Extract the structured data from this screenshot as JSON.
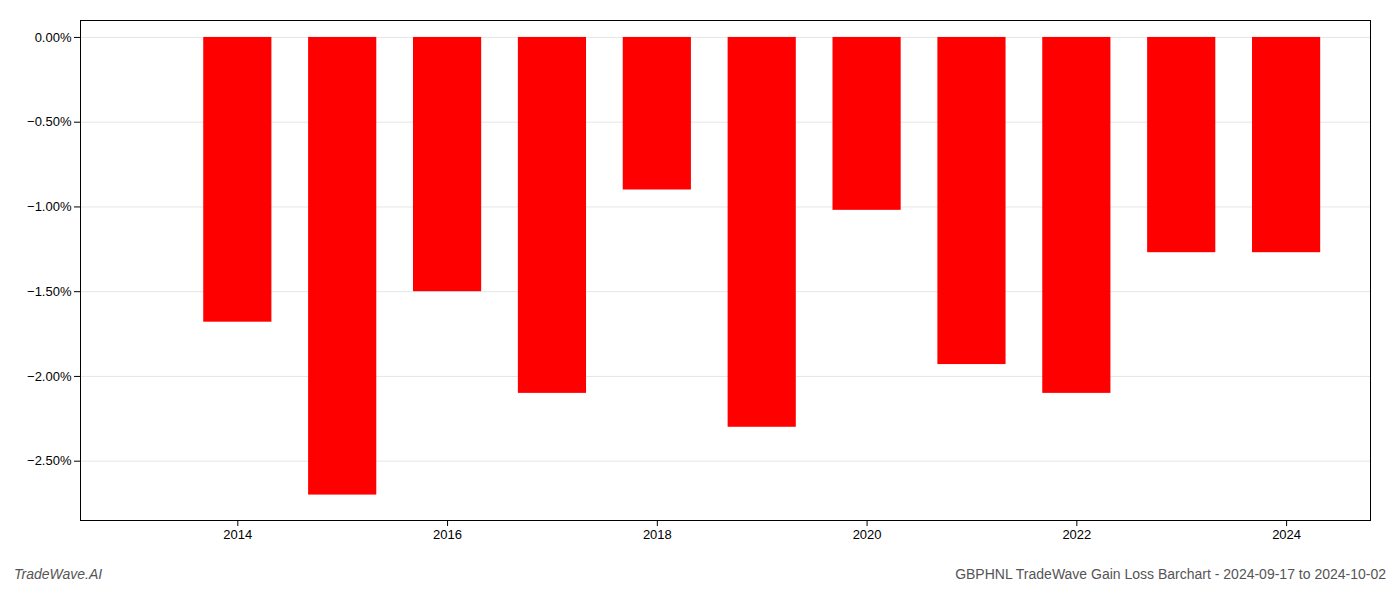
{
  "chart_data": {
    "type": "bar",
    "x": [
      2013,
      2014,
      2015,
      2016,
      2017,
      2018,
      2019,
      2020,
      2021,
      2022,
      2023,
      2024
    ],
    "values": [
      -0.0,
      -1.68,
      -2.7,
      -1.5,
      -2.1,
      -0.9,
      -2.3,
      -1.02,
      -1.93,
      -2.1,
      -1.27,
      -1.27
    ],
    "color": "#ff0000",
    "xlim": [
      2012.5,
      2024.8
    ],
    "xticks": [
      2014,
      2016,
      2018,
      2020,
      2022,
      2024
    ],
    "ylim": [
      -2.85,
      0.1
    ],
    "yticks": [
      {
        "value": 0.0,
        "label": "0.00%"
      },
      {
        "value": -0.5,
        "label": "−0.50%"
      },
      {
        "value": -1.0,
        "label": "−1.00%"
      },
      {
        "value": -1.5,
        "label": "−1.50%"
      },
      {
        "value": -2.0,
        "label": "−2.00%"
      },
      {
        "value": -2.5,
        "label": "−2.50%"
      }
    ],
    "grid": true,
    "annotations": [
      "TradeWave.AI",
      "GBPHNL TradeWave Gain Loss Barchart - 2024-09-17 to 2024-10-02"
    ]
  }
}
